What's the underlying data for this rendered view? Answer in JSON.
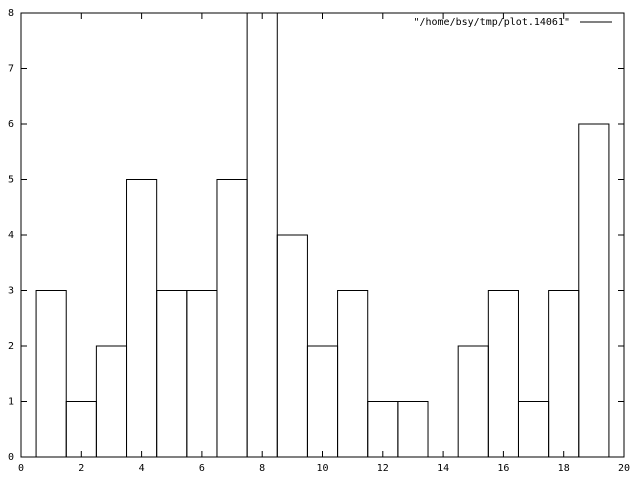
{
  "chart_data": {
    "type": "histogram",
    "bins": [
      0.5,
      1.5,
      2.5,
      3.5,
      4.5,
      5.5,
      6.5,
      7.5,
      8.5,
      9.5,
      10.5,
      11.5,
      12.5,
      13.5,
      14.5,
      15.5,
      16.5,
      17.5,
      18.5,
      19.5
    ],
    "series": [
      {
        "name": "\"/home/bsy/tmp/plot.14061\"",
        "color": "#000000",
        "values": [
          3,
          1,
          2,
          5,
          3,
          3,
          5,
          8,
          4,
          2,
          3,
          1,
          1,
          0,
          2,
          3,
          1,
          3,
          6
        ]
      }
    ],
    "xlim": [
      0,
      20
    ],
    "ylim": [
      0,
      8
    ],
    "xticks": [
      0,
      2,
      4,
      6,
      8,
      10,
      12,
      14,
      16,
      18,
      20
    ],
    "yticks": [
      0,
      1,
      2,
      3,
      4,
      5,
      6,
      7,
      8
    ],
    "legend": "top-right"
  }
}
